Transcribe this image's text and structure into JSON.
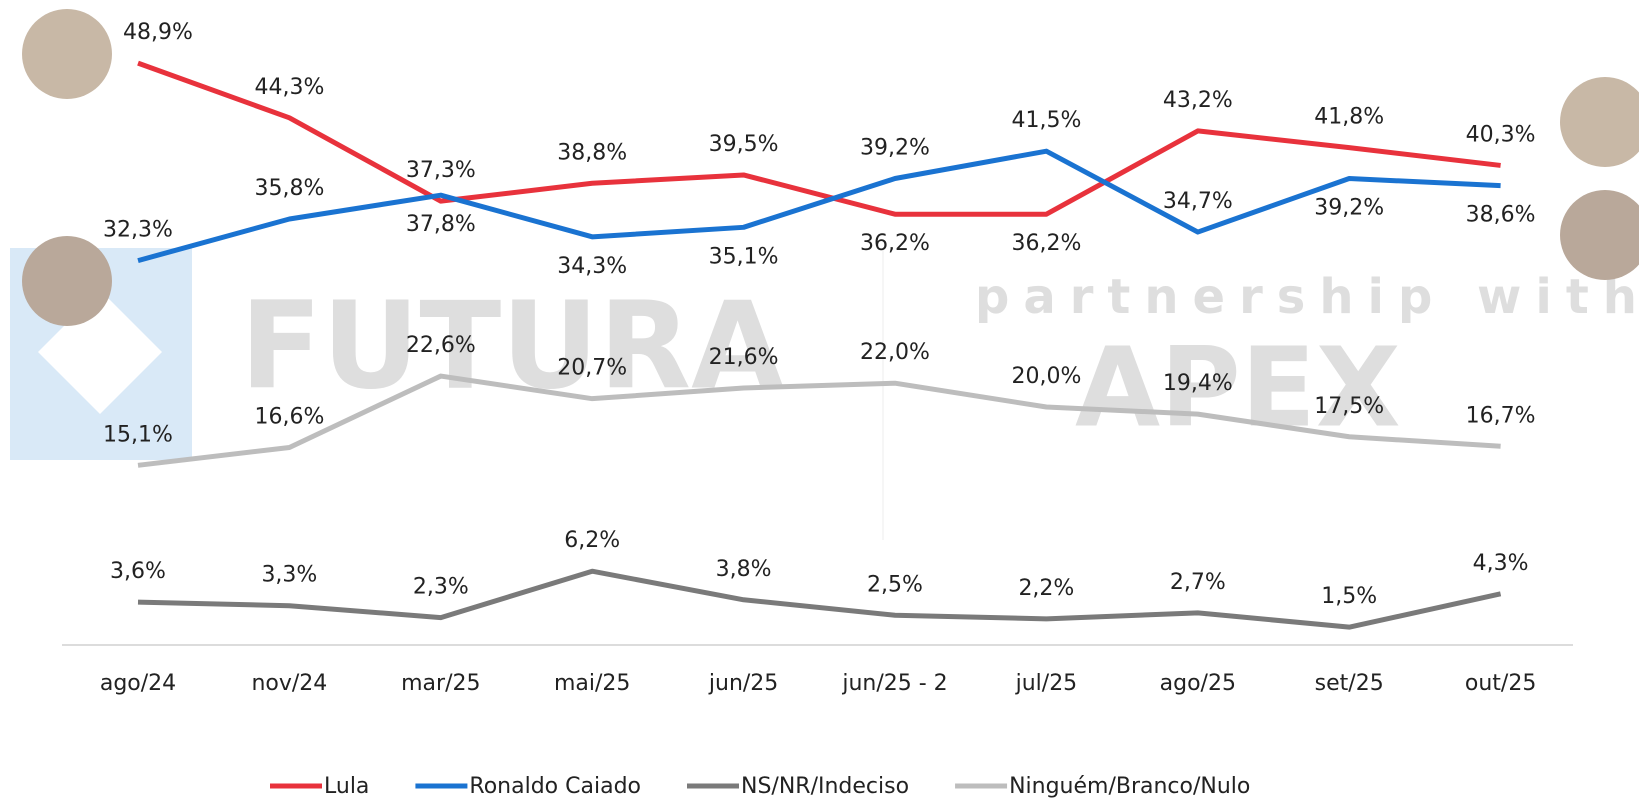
{
  "chart_data": {
    "type": "line",
    "categories": [
      "ago/24",
      "nov/24",
      "mar/25",
      "mai/25",
      "jun/25",
      "jun/25 - 2",
      "jul/25",
      "ago/25",
      "set/25",
      "out/25"
    ],
    "series": [
      {
        "name": "Lula",
        "color": "#e8323c",
        "values": [
          48.9,
          44.3,
          37.3,
          38.8,
          39.5,
          36.2,
          36.2,
          43.2,
          41.8,
          40.3
        ],
        "value_labels": [
          "48,9%",
          "44,3%",
          "37,3%",
          "38,8%",
          "39,5%",
          "36,2%",
          "36,2%",
          "43,2%",
          "41,8%",
          "40,3%"
        ]
      },
      {
        "name": "Ronaldo Caiado",
        "color": "#1a73d1",
        "values": [
          32.3,
          35.8,
          37.8,
          34.3,
          35.1,
          39.2,
          41.5,
          34.7,
          39.2,
          38.6
        ],
        "value_labels": [
          "32,3%",
          "35,8%",
          "37,8%",
          "34,3%",
          "35,1%",
          "39,2%",
          "41,5%",
          "34,7%",
          "39,2%",
          "38,6%"
        ]
      },
      {
        "name": "NS/NR/Indeciso",
        "color": "#7a7a7a",
        "values": [
          3.6,
          3.3,
          2.3,
          6.2,
          3.8,
          2.5,
          2.2,
          2.7,
          1.5,
          4.3
        ],
        "value_labels": [
          "3,6%",
          "3,3%",
          "2,3%",
          "6,2%",
          "3,8%",
          "2,5%",
          "2,2%",
          "2,7%",
          "1,5%",
          "4,3%"
        ]
      },
      {
        "name": "Ninguém/Branco/Nulo",
        "color": "#bdbdbd",
        "values": [
          15.1,
          16.6,
          22.6,
          20.7,
          21.6,
          22.0,
          20.0,
          19.4,
          17.5,
          16.7
        ],
        "value_labels": [
          "15,1%",
          "16,6%",
          "22,6%",
          "20,7%",
          "21,6%",
          "22,0%",
          "20,0%",
          "19,4%",
          "17,5%",
          "16,7%"
        ]
      }
    ],
    "ylim": [
      0,
      52
    ],
    "watermark": "FUTURA",
    "watermark_sub": "partnership with",
    "watermark_brand": "APEX"
  }
}
